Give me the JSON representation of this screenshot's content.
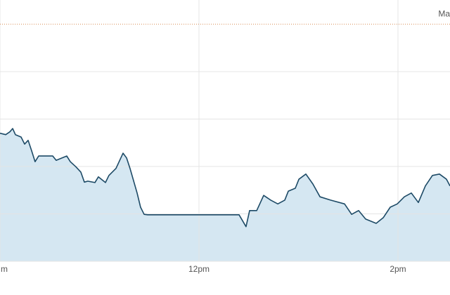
{
  "chart_data": {
    "type": "area",
    "x": [
      10.0,
      10.057,
      10.099,
      10.127,
      10.155,
      10.212,
      10.247,
      10.283,
      10.318,
      10.353,
      10.389,
      10.459,
      10.53,
      10.565,
      10.671,
      10.707,
      10.763,
      10.813,
      10.848,
      10.883,
      10.954,
      10.989,
      11.06,
      11.095,
      11.166,
      11.237,
      11.272,
      11.307,
      11.378,
      11.413,
      11.449,
      11.484,
      12.403,
      12.473,
      12.509,
      12.58,
      12.65,
      12.721,
      12.792,
      12.862,
      12.898,
      12.968,
      13.004,
      13.074,
      13.145,
      13.216,
      13.322,
      13.463,
      13.534,
      13.604,
      13.675,
      13.781,
      13.852,
      13.922,
      13.993,
      14.064,
      14.134,
      14.205,
      14.276,
      14.346,
      14.417,
      14.488,
      14.523
    ],
    "values": [
      2.7,
      2.67,
      2.73,
      2.8,
      2.67,
      2.62,
      2.47,
      2.55,
      2.33,
      2.1,
      2.22,
      2.22,
      2.22,
      2.13,
      2.22,
      2.1,
      1.99,
      1.88,
      1.67,
      1.69,
      1.66,
      1.78,
      1.66,
      1.81,
      1.96,
      2.28,
      2.18,
      1.96,
      1.44,
      1.14,
      0.99,
      0.98,
      0.98,
      0.73,
      1.07,
      1.07,
      1.39,
      1.29,
      1.21,
      1.29,
      1.48,
      1.54,
      1.73,
      1.84,
      1.63,
      1.36,
      1.29,
      1.21,
      0.99,
      1.07,
      0.89,
      0.8,
      0.92,
      1.14,
      1.21,
      1.36,
      1.44,
      1.24,
      1.59,
      1.81,
      1.84,
      1.73,
      1.59
    ],
    "color": "#1d4a66",
    "fill_color": "#d5e7f2",
    "xlim": [
      10,
      14.523
    ],
    "xticks": [
      {
        "value": 10,
        "label": "m"
      },
      {
        "value": 12,
        "label": "12pm"
      },
      {
        "value": 14,
        "label": "2pm"
      }
    ],
    "ylim": [
      0,
      5.51
    ],
    "yticks": [
      0,
      1,
      2,
      3,
      4
    ],
    "grid": true,
    "reference_line": {
      "value": 5,
      "label": "Ma",
      "color": "#d9905a"
    }
  }
}
